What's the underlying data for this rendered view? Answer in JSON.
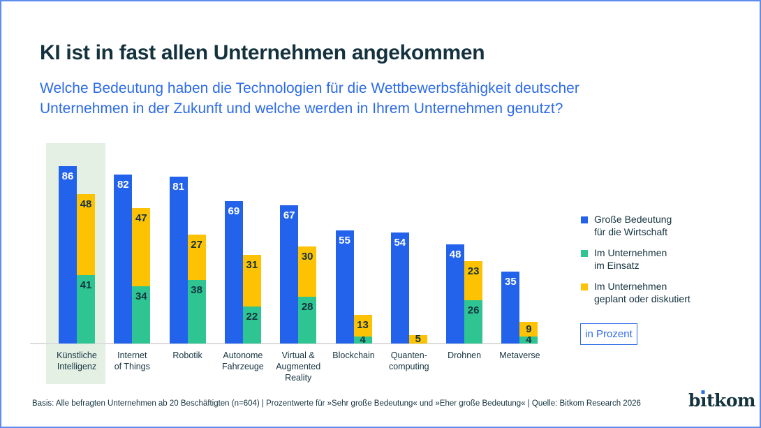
{
  "page": {
    "title": "KI ist in fast allen Unternehmen angekommen",
    "subtitle_lines": [
      "Welche Bedeutung haben die Technologien für die Wettbewerbsfähigkeit deutscher",
      "Unternehmen in der Zukunft und welche werden in Ihrem Unternehmen genutzt?"
    ],
    "footer": "Basis: Alle befragten Unternehmen ab 20 Beschäftigten (n=604) | Prozentwerte für »Sehr große Bedeutung« und »Eher große Bedeutung« | Quelle: Bitkom Research 2026",
    "brand": {
      "logo_text": "bitkom",
      "logo_pre": "b",
      "logo_i": "ı",
      "logo_post": "tkom"
    }
  },
  "colors": {
    "blue": "#2363eb",
    "green": "#2ec593",
    "yellow": "#fdc303",
    "dark": "#14323e",
    "accent": "#2d6be8",
    "band": "#e5f0e5",
    "axis": "#dcdcdc",
    "frame": "#5b8cee"
  },
  "legend": {
    "items": [
      {
        "color_key": "blue",
        "lines": [
          "Große Bedeutung",
          "für die Wirtschaft"
        ]
      },
      {
        "color_key": "green",
        "lines": [
          "Im Unternehmen",
          "im Einsatz"
        ]
      },
      {
        "color_key": "yellow",
        "lines": [
          "Im Unternehmen",
          "geplant oder diskutiert"
        ]
      }
    ],
    "unit_label": "in Prozent"
  },
  "chart_data": {
    "type": "bar",
    "title": "KI ist in fast allen Unternehmen angekommen",
    "unit": "Prozent",
    "value_range": [
      0,
      100
    ],
    "highlighted_category": "Künstliche Intelligenz",
    "categories": [
      "Künstliche Intelligenz",
      "Internet of Things",
      "Robotik",
      "Autonome Fahrzeuge",
      "Virtual & Augmented Reality",
      "Blockchain",
      "Quantencomputing",
      "Drohnen",
      "Metaverse"
    ],
    "category_label_lines": [
      [
        "Künstliche",
        "Intelligenz"
      ],
      [
        "Internet",
        "of Things"
      ],
      [
        "Robotik"
      ],
      [
        "Autonome",
        "Fahrzeuge"
      ],
      [
        "Virtual &",
        "Augmented",
        "Reality"
      ],
      [
        "Blockchain"
      ],
      [
        "Quanten-",
        "computing"
      ],
      [
        "Drohnen"
      ],
      [
        "Metaverse"
      ]
    ],
    "series": [
      {
        "name": "Große Bedeutung für die Wirtschaft",
        "color": "#2363eb",
        "values": [
          86,
          82,
          81,
          69,
          67,
          55,
          54,
          48,
          35
        ]
      },
      {
        "name": "Im Unternehmen im Einsatz",
        "color": "#2ec593",
        "values": [
          41,
          34,
          38,
          22,
          28,
          4,
          0,
          26,
          4
        ]
      },
      {
        "name": "Im Unternehmen geplant oder diskutiert",
        "color": "#fdc303",
        "values": [
          48,
          47,
          27,
          31,
          30,
          13,
          5,
          23,
          9
        ]
      }
    ],
    "layout_hint": "per category: one blue bar (series 1) plus one adjacent stacked bar (series 2 bottom, series 3 top); first category highlighted with pale green band; no y-axis shown; values labeled on bars"
  }
}
